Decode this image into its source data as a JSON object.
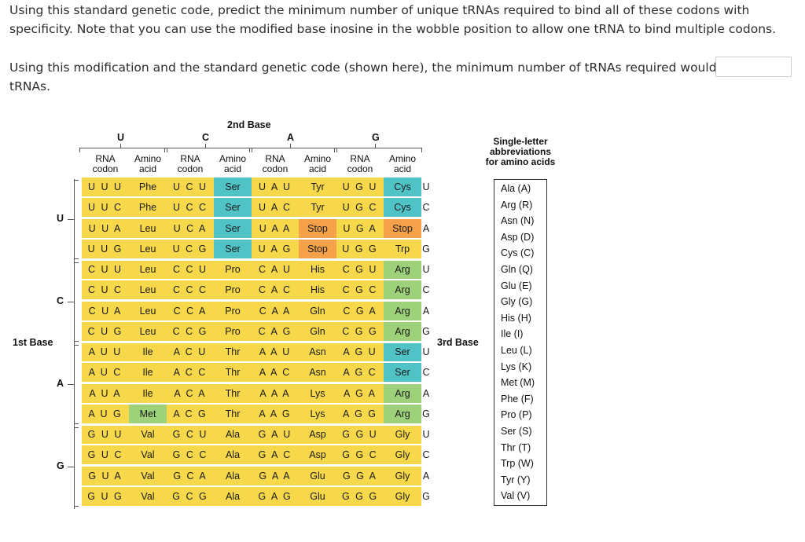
{
  "question": {
    "line1": "Using this standard genetic code, predict the minimum number of unique tRNAs required to bind all of these codons with specificity. Note that you can use the modified base inosine in the wobble position to allow one tRNA to bind multiple codons.",
    "line2_before": "Using this modification and the standard genetic code (shown here), the minimum number of tRNAs required would be",
    "line2_after": "tRNAs.",
    "answer_value": ""
  },
  "table": {
    "second_base_label": "2nd Base",
    "first_base_label": "1st Base",
    "third_base_label": "3rd Base",
    "second_bases": [
      "U",
      "C",
      "A",
      "G"
    ],
    "first_bases": [
      "U",
      "C",
      "A",
      "G"
    ],
    "third_bases": [
      "U",
      "C",
      "A",
      "G",
      "U",
      "C",
      "A",
      "G",
      "U",
      "C",
      "A",
      "G",
      "U",
      "C",
      "A",
      "G"
    ],
    "col_headers": [
      "RNA\ncodon",
      "Amino\nacid"
    ],
    "rows": [
      [
        [
          "UUU",
          "Phe",
          "y"
        ],
        [
          "UCU",
          "Ser",
          "c"
        ],
        [
          "UAU",
          "Tyr",
          "y"
        ],
        [
          "UGU",
          "Cys",
          "c"
        ]
      ],
      [
        [
          "UUC",
          "Phe",
          "y"
        ],
        [
          "UCC",
          "Ser",
          "c"
        ],
        [
          "UAC",
          "Tyr",
          "y"
        ],
        [
          "UGC",
          "Cys",
          "c"
        ]
      ],
      [
        [
          "UUA",
          "Leu",
          "y"
        ],
        [
          "UCA",
          "Ser",
          "c"
        ],
        [
          "UAA",
          "Stop",
          "o"
        ],
        [
          "UGA",
          "Stop",
          "o"
        ]
      ],
      [
        [
          "UUG",
          "Leu",
          "y"
        ],
        [
          "UCG",
          "Ser",
          "c"
        ],
        [
          "UAG",
          "Stop",
          "o"
        ],
        [
          "UGG",
          "Trp",
          "y"
        ]
      ],
      [
        [
          "CUU",
          "Leu",
          "y"
        ],
        [
          "CCU",
          "Pro",
          "y"
        ],
        [
          "CAU",
          "His",
          "y"
        ],
        [
          "CGU",
          "Arg",
          "g"
        ]
      ],
      [
        [
          "CUC",
          "Leu",
          "y"
        ],
        [
          "CCC",
          "Pro",
          "y"
        ],
        [
          "CAC",
          "His",
          "y"
        ],
        [
          "CGC",
          "Arg",
          "g"
        ]
      ],
      [
        [
          "CUA",
          "Leu",
          "y"
        ],
        [
          "CCA",
          "Pro",
          "y"
        ],
        [
          "CAA",
          "Gln",
          "y"
        ],
        [
          "CGA",
          "Arg",
          "g"
        ]
      ],
      [
        [
          "CUG",
          "Leu",
          "y"
        ],
        [
          "CCG",
          "Pro",
          "y"
        ],
        [
          "CAG",
          "Gln",
          "y"
        ],
        [
          "CGG",
          "Arg",
          "g"
        ]
      ],
      [
        [
          "AUU",
          "Ile",
          "y"
        ],
        [
          "ACU",
          "Thr",
          "y"
        ],
        [
          "AAU",
          "Asn",
          "y"
        ],
        [
          "AGU",
          "Ser",
          "c"
        ]
      ],
      [
        [
          "AUC",
          "Ile",
          "y"
        ],
        [
          "ACC",
          "Thr",
          "y"
        ],
        [
          "AAC",
          "Asn",
          "y"
        ],
        [
          "AGC",
          "Ser",
          "c"
        ]
      ],
      [
        [
          "AUA",
          "Ile",
          "y"
        ],
        [
          "ACA",
          "Thr",
          "y"
        ],
        [
          "AAA",
          "Lys",
          "y"
        ],
        [
          "AGA",
          "Arg",
          "g"
        ]
      ],
      [
        [
          "AUG",
          "Met",
          "g"
        ],
        [
          "ACG",
          "Thr",
          "y"
        ],
        [
          "AAG",
          "Lys",
          "y"
        ],
        [
          "AGG",
          "Arg",
          "g"
        ]
      ],
      [
        [
          "GUU",
          "Val",
          "y"
        ],
        [
          "GCU",
          "Ala",
          "y"
        ],
        [
          "GAU",
          "Asp",
          "y"
        ],
        [
          "GGU",
          "Gly",
          "y"
        ]
      ],
      [
        [
          "GUC",
          "Val",
          "y"
        ],
        [
          "GCC",
          "Ala",
          "y"
        ],
        [
          "GAC",
          "Asp",
          "y"
        ],
        [
          "GGC",
          "Gly",
          "y"
        ]
      ],
      [
        [
          "GUA",
          "Val",
          "y"
        ],
        [
          "GCA",
          "Ala",
          "y"
        ],
        [
          "GAA",
          "Glu",
          "y"
        ],
        [
          "GGA",
          "Gly",
          "y"
        ]
      ],
      [
        [
          "GUG",
          "Val",
          "y"
        ],
        [
          "GCG",
          "Ala",
          "y"
        ],
        [
          "GAG",
          "Glu",
          "y"
        ],
        [
          "GGG",
          "Gly",
          "y"
        ]
      ]
    ],
    "colors": {
      "y": "#f7d84b",
      "c": "#4fc3c6",
      "o": "#f5a14a",
      "g": "#9ed27a"
    }
  },
  "abbreviations": {
    "title": [
      "Single-letter",
      "abbreviations",
      "for amino acids"
    ],
    "items": [
      "Ala (A)",
      "Arg (R)",
      "Asn (N)",
      "Asp (D)",
      "Cys (C)",
      "Gln (Q)",
      "Glu (E)",
      "Gly (G)",
      "His (H)",
      "Ile (I)",
      "Leu (L)",
      "Lys (K)",
      "Met (M)",
      "Phe (F)",
      "Pro (P)",
      "Ser (S)",
      "Thr (T)",
      "Trp (W)",
      "Tyr (Y)",
      "Val (V)"
    ]
  }
}
